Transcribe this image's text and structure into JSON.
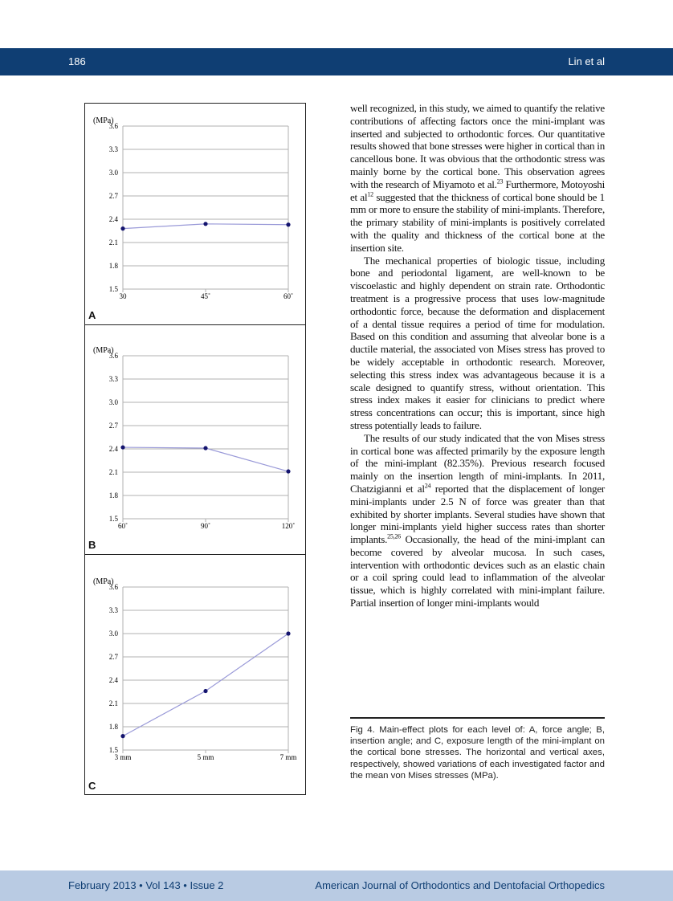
{
  "header": {
    "page_number": "186",
    "authors": "Lin et al"
  },
  "footer": {
    "issue": "February 2013 • Vol 143 • Issue 2",
    "journal": "American Journal of Orthodontics and Dentofacial Orthopedics"
  },
  "chart_data": [
    {
      "type": "line",
      "panel_label": "A",
      "ylabel": "(MPa)",
      "ylim": [
        1.5,
        3.6
      ],
      "yticks": [
        "3.6",
        "3.3",
        "3.0",
        "2.7",
        "2.4",
        "2.1",
        "1.8",
        "1.5"
      ],
      "categories": [
        "30",
        "45˚",
        "60˚"
      ],
      "values": [
        2.28,
        2.34,
        2.33
      ],
      "grid": true,
      "line_color": "#9a9ad8",
      "marker_color": "#14146e"
    },
    {
      "type": "line",
      "panel_label": "B",
      "ylabel": "(MPa)",
      "ylim": [
        1.5,
        3.6
      ],
      "yticks": [
        "3.6",
        "3.3",
        "3.0",
        "2.7",
        "2.4",
        "2.1",
        "1.8",
        "1.5"
      ],
      "categories": [
        "60˚",
        "90˚",
        "120˚"
      ],
      "values": [
        2.42,
        2.41,
        2.11
      ],
      "grid": true,
      "line_color": "#9a9ad8",
      "marker_color": "#14146e"
    },
    {
      "type": "line",
      "panel_label": "C",
      "ylabel": "(MPa)",
      "ylim": [
        1.5,
        3.6
      ],
      "yticks": [
        "3.6",
        "3.3",
        "3.0",
        "2.7",
        "2.4",
        "2.1",
        "1.8",
        "1.5"
      ],
      "categories": [
        "3 mm",
        "5 mm",
        "7 mm"
      ],
      "values": [
        1.68,
        2.26,
        3.0
      ],
      "grid": true,
      "line_color": "#9a9ad8",
      "marker_color": "#14146e"
    }
  ],
  "body": {
    "p1a": "well recognized, in this study, we aimed to quantify the relative contributions of affecting factors once the mini-implant was inserted and subjected to orthodontic forces. Our quantitative results showed that bone stresses were higher in cortical than in cancellous bone. It was obvious that the orthodontic stress was mainly borne by the cortical bone. This observation agrees with the research of Miyamoto et al.",
    "ref1": "23",
    "p1b": " Furthermore, Motoyoshi et al",
    "ref2": "12",
    "p1c": " suggested that the thickness of cortical bone should be 1 mm or more to ensure the stability of mini-implants. Therefore, the primary stability of mini-implants is positively correlated with the quality and thickness of the cortical bone at the insertion site.",
    "p2": "The mechanical properties of biologic tissue, including bone and periodontal ligament, are well-known to be viscoelastic and highly dependent on strain rate. Orthodontic treatment is a progressive process that uses low-magnitude orthodontic force, because the deformation and displacement of a dental tissue requires a period of time for modulation. Based on this condition and assuming that alveolar bone is a ductile material, the associated von Mises stress has proved to be widely acceptable in orthodontic research. Moreover, selecting this stress index was advantageous because it is a scale designed to quantify stress, without orientation. This stress index makes it easier for clinicians to predict where stress concentrations can occur; this is important, since high stress potentially leads to failure.",
    "p3a": "The results of our study indicated that the von Mises stress in cortical bone was affected primarily by the exposure length of the mini-implant (82.35%). Previous research focused mainly on the insertion length of mini-implants. In 2011, Chatzigianni et al",
    "ref3": "24",
    "p3b": " reported that the displacement of longer mini-implants under 2.5 N of force was greater than that exhibited by shorter implants. Several studies have shown that longer mini-implants yield higher success rates than shorter implants.",
    "ref4": "25,26",
    "p3c": " Occasionally, the head of the mini-implant can become covered by alveolar mucosa. In such cases, intervention with orthodontic devices such as an elastic chain or a coil spring could lead to inflammation of the alveolar tissue, which is highly correlated with mini-implant failure. Partial insertion of longer mini-implants would"
  },
  "caption": "Fig 4. Main-effect plots for each level of: A, force angle; B, insertion angle; and C, exposure length of the mini-implant on the cortical bone stresses. The horizontal and vertical axes, respectively, showed variations of each investigated factor and the mean von Mises stresses (MPa)."
}
